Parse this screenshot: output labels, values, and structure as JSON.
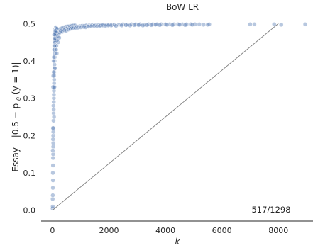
{
  "chart_data": {
    "type": "scatter",
    "title": "BoW LR",
    "xlabel": "k",
    "ylabel_prefix": "Essay",
    "ylabel_expr": "|0.5 − p",
    "ylabel_theta": "θ",
    "ylabel_suffix": "(y = 1)|",
    "annotation": "517/1298",
    "xlim": [
      -400,
      9200
    ],
    "ylim": [
      -0.01,
      0.51
    ],
    "xticks": [
      0,
      2000,
      4000,
      6000,
      8000
    ],
    "xtick_labels": [
      "0",
      "2000",
      "4000",
      "6000",
      "8000"
    ],
    "yticks": [
      0.0,
      0.1,
      0.2,
      0.3,
      0.4,
      0.5
    ],
    "ytick_labels": [
      "0.0",
      "0.1",
      "0.2",
      "0.3",
      "0.4",
      "0.5"
    ],
    "reference_line": {
      "x": [
        0,
        8000
      ],
      "y": [
        0.0,
        0.5
      ]
    },
    "point_color": "#4c72b0",
    "line_color": "#808080",
    "grid": false,
    "points": [
      [
        5,
        0.005
      ],
      [
        10,
        0.01
      ],
      [
        8,
        0.03
      ],
      [
        12,
        0.04
      ],
      [
        15,
        0.06
      ],
      [
        18,
        0.08
      ],
      [
        14,
        0.1
      ],
      [
        20,
        0.12
      ],
      [
        22,
        0.14
      ],
      [
        25,
        0.15
      ],
      [
        27,
        0.17
      ],
      [
        30,
        0.18
      ],
      [
        28,
        0.2
      ],
      [
        32,
        0.21
      ],
      [
        35,
        0.22
      ],
      [
        38,
        0.24
      ],
      [
        40,
        0.26
      ],
      [
        42,
        0.27
      ],
      [
        45,
        0.29
      ],
      [
        48,
        0.3
      ],
      [
        50,
        0.31
      ],
      [
        52,
        0.32
      ],
      [
        55,
        0.33
      ],
      [
        58,
        0.34
      ],
      [
        60,
        0.35
      ],
      [
        62,
        0.36
      ],
      [
        65,
        0.37
      ],
      [
        68,
        0.38
      ],
      [
        70,
        0.39
      ],
      [
        75,
        0.4
      ],
      [
        80,
        0.41
      ],
      [
        85,
        0.42
      ],
      [
        90,
        0.43
      ],
      [
        95,
        0.44
      ],
      [
        100,
        0.45
      ],
      [
        110,
        0.455
      ],
      [
        120,
        0.46
      ],
      [
        130,
        0.465
      ],
      [
        140,
        0.47
      ],
      [
        150,
        0.475
      ],
      [
        40,
        0.4
      ],
      [
        60,
        0.43
      ],
      [
        80,
        0.45
      ],
      [
        100,
        0.46
      ],
      [
        120,
        0.47
      ],
      [
        90,
        0.38
      ],
      [
        70,
        0.33
      ],
      [
        110,
        0.44
      ],
      [
        55,
        0.25
      ],
      [
        35,
        0.28
      ],
      [
        170,
        0.47
      ],
      [
        190,
        0.478
      ],
      [
        210,
        0.48
      ],
      [
        230,
        0.482
      ],
      [
        250,
        0.485
      ],
      [
        280,
        0.486
      ],
      [
        310,
        0.487
      ],
      [
        340,
        0.488
      ],
      [
        370,
        0.489
      ],
      [
        400,
        0.49
      ],
      [
        180,
        0.465
      ],
      [
        220,
        0.472
      ],
      [
        260,
        0.476
      ],
      [
        300,
        0.48
      ],
      [
        200,
        0.45
      ],
      [
        240,
        0.462
      ],
      [
        160,
        0.455
      ],
      [
        140,
        0.44
      ],
      [
        130,
        0.43
      ],
      [
        150,
        0.42
      ],
      [
        430,
        0.49
      ],
      [
        460,
        0.491
      ],
      [
        500,
        0.492
      ],
      [
        540,
        0.492
      ],
      [
        580,
        0.493
      ],
      [
        620,
        0.493
      ],
      [
        660,
        0.494
      ],
      [
        700,
        0.494
      ],
      [
        750,
        0.495
      ],
      [
        800,
        0.495
      ],
      [
        450,
        0.485
      ],
      [
        520,
        0.487
      ],
      [
        600,
        0.488
      ],
      [
        680,
        0.489
      ],
      [
        760,
        0.49
      ],
      [
        850,
        0.491
      ],
      [
        920,
        0.492
      ],
      [
        980,
        0.493
      ],
      [
        1050,
        0.494
      ],
      [
        1120,
        0.494
      ],
      [
        350,
        0.478
      ],
      [
        420,
        0.482
      ],
      [
        480,
        0.48
      ],
      [
        560,
        0.484
      ],
      [
        640,
        0.486
      ],
      [
        720,
        0.487
      ],
      [
        820,
        0.488
      ],
      [
        900,
        0.489
      ],
      [
        1000,
        0.49
      ],
      [
        1100,
        0.491
      ],
      [
        1200,
        0.495
      ],
      [
        1300,
        0.495
      ],
      [
        1400,
        0.496
      ],
      [
        1500,
        0.496
      ],
      [
        1600,
        0.496
      ],
      [
        1700,
        0.496
      ],
      [
        1800,
        0.497
      ],
      [
        1900,
        0.497
      ],
      [
        2000,
        0.497
      ],
      [
        2100,
        0.497
      ],
      [
        1180,
        0.49
      ],
      [
        1280,
        0.492
      ],
      [
        1380,
        0.493
      ],
      [
        1480,
        0.494
      ],
      [
        1580,
        0.493
      ],
      [
        1680,
        0.494
      ],
      [
        1780,
        0.495
      ],
      [
        1880,
        0.494
      ],
      [
        1980,
        0.495
      ],
      [
        2080,
        0.495
      ],
      [
        2200,
        0.497
      ],
      [
        2350,
        0.497
      ],
      [
        2500,
        0.498
      ],
      [
        2650,
        0.497
      ],
      [
        2800,
        0.498
      ],
      [
        2950,
        0.498
      ],
      [
        3100,
        0.498
      ],
      [
        3250,
        0.497
      ],
      [
        3400,
        0.498
      ],
      [
        3550,
        0.498
      ],
      [
        2250,
        0.494
      ],
      [
        2450,
        0.495
      ],
      [
        2600,
        0.496
      ],
      [
        2750,
        0.495
      ],
      [
        2900,
        0.496
      ],
      [
        3050,
        0.496
      ],
      [
        3200,
        0.495
      ],
      [
        3350,
        0.496
      ],
      [
        3500,
        0.496
      ],
      [
        3650,
        0.497
      ],
      [
        3700,
        0.498
      ],
      [
        3850,
        0.498
      ],
      [
        4000,
        0.498
      ],
      [
        4150,
        0.498
      ],
      [
        4300,
        0.498
      ],
      [
        4450,
        0.498
      ],
      [
        4600,
        0.498
      ],
      [
        4750,
        0.498
      ],
      [
        4900,
        0.498
      ],
      [
        5050,
        0.498
      ],
      [
        3800,
        0.496
      ],
      [
        4050,
        0.497
      ],
      [
        4250,
        0.496
      ],
      [
        4500,
        0.497
      ],
      [
        4700,
        0.496
      ],
      [
        4950,
        0.497
      ],
      [
        5200,
        0.498
      ],
      [
        5350,
        0.497
      ],
      [
        5500,
        0.497
      ],
      [
        5550,
        0.498
      ],
      [
        7000,
        0.498
      ],
      [
        7150,
        0.498
      ],
      [
        7850,
        0.498
      ],
      [
        8100,
        0.497
      ],
      [
        8950,
        0.498
      ],
      [
        60,
        0.47
      ],
      [
        80,
        0.48
      ],
      [
        100,
        0.485
      ],
      [
        120,
        0.49
      ],
      [
        140,
        0.488
      ],
      [
        75,
        0.46
      ],
      [
        95,
        0.475
      ],
      [
        115,
        0.482
      ],
      [
        135,
        0.478
      ],
      [
        155,
        0.486
      ],
      [
        25,
        0.33
      ],
      [
        30,
        0.36
      ],
      [
        18,
        0.22
      ],
      [
        22,
        0.19
      ],
      [
        12,
        0.16
      ],
      [
        45,
        0.37
      ],
      [
        50,
        0.41
      ],
      [
        65,
        0.44
      ],
      [
        85,
        0.47
      ],
      [
        105,
        0.48
      ]
    ]
  }
}
